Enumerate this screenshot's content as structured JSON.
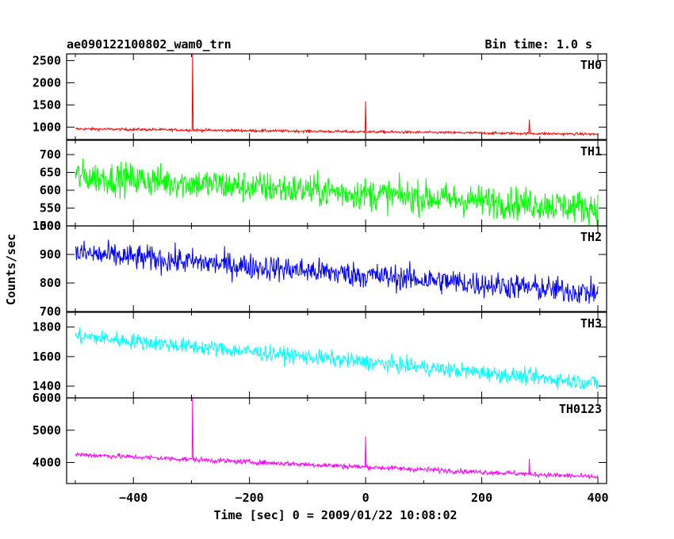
{
  "header": {
    "title": "ae090122100802_wam0_trn",
    "bin_time": "Bin time: 1.0 s"
  },
  "chart_data": {
    "type": "line",
    "title": "ae090122100802_wam0_trn",
    "xlabel": "Time [sec] 0 = 2009/01/22 10:08:02",
    "ylabel": "Counts/sec",
    "xlim": [
      -515,
      415
    ],
    "x_ticks": [
      -400,
      -200,
      0,
      200,
      400
    ],
    "panels": [
      {
        "name": "TH0",
        "color": "#ff0000",
        "ylim": [
          720,
          2650
        ],
        "y_ticks": [
          1000,
          1500,
          2000,
          2500
        ],
        "start_level": 960,
        "end_level": 840,
        "noise": 25,
        "spikes": [
          {
            "x": -298,
            "y": 2650
          },
          {
            "x": 0,
            "y": 1580
          },
          {
            "x": 282,
            "y": 1170
          }
        ],
        "x_start": -500,
        "x_end": 400
      },
      {
        "name": "TH1",
        "color": "#00ff00",
        "ylim": [
          500,
          740
        ],
        "y_ticks": [
          500,
          550,
          600,
          650,
          700
        ],
        "start_level": 640,
        "end_level": 550,
        "noise": 38,
        "spikes": [],
        "x_start": -500,
        "x_end": 400
      },
      {
        "name": "TH2",
        "color": "#0000ff",
        "ylim": [
          700,
          1000
        ],
        "y_ticks": [
          700,
          800,
          900,
          1000
        ],
        "start_level": 905,
        "end_level": 765,
        "noise": 38,
        "spikes": [],
        "x_start": -500,
        "x_end": 400
      },
      {
        "name": "TH3",
        "color": "#00ffff",
        "ylim": [
          1320,
          1900
        ],
        "y_ticks": [
          1400,
          1600,
          1800
        ],
        "start_level": 1740,
        "end_level": 1420,
        "noise": 45,
        "spikes": [],
        "x_start": -500,
        "x_end": 400
      },
      {
        "name": "TH0123",
        "color": "#ff00ff",
        "ylim": [
          3350,
          6000
        ],
        "y_ticks": [
          4000,
          5000,
          6000
        ],
        "start_level": 4250,
        "end_level": 3550,
        "noise": 65,
        "spikes": [
          {
            "x": -298,
            "y": 6000
          },
          {
            "x": 0,
            "y": 4800
          },
          {
            "x": 282,
            "y": 4120
          }
        ],
        "x_start": -500,
        "x_end": 400
      }
    ]
  }
}
